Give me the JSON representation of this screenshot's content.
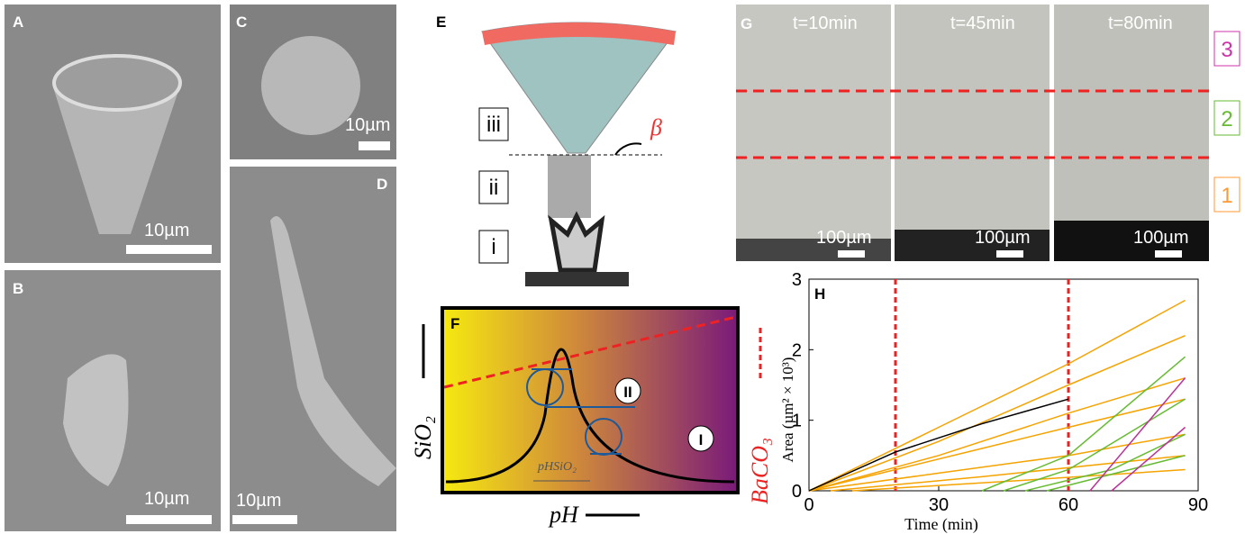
{
  "panels": {
    "A": {
      "label": "A",
      "scale": "10µm"
    },
    "B": {
      "label": "B",
      "scale": "10µm"
    },
    "C": {
      "label": "C",
      "scale": "10µm"
    },
    "D": {
      "label": "D",
      "scale": "10µm"
    },
    "E": {
      "label": "E",
      "zones": [
        "iii",
        "ii",
        "i"
      ],
      "angle": "β"
    },
    "F": {
      "label": "F",
      "y_label": "SiO₂",
      "x_label": "pH",
      "y2_label": "BaCO₃",
      "cycles": [
        "II",
        "I"
      ],
      "width_label": "pHSiO₂"
    },
    "G": {
      "label": "G",
      "times": [
        "t=10min",
        "t=45min",
        "t=80min"
      ],
      "scale": "100µm",
      "zones": [
        "3",
        "2",
        "1"
      ]
    }
  },
  "chart_data": {
    "type": "line",
    "label": "H",
    "x_label": "Time (min)",
    "y_label": "Area (µm² × 10³)",
    "xlim": [
      0,
      90
    ],
    "xticks": [
      0,
      30,
      60,
      90
    ],
    "ylim": [
      0,
      3
    ],
    "yticks": [
      0,
      1,
      2,
      3
    ],
    "markers": [
      20,
      60
    ],
    "series": [
      {
        "color": "#f5a300",
        "x": [
          0,
          30,
          60,
          87
        ],
        "values": [
          0,
          0.9,
          1.8,
          2.7
        ]
      },
      {
        "color": "#f5a300",
        "x": [
          0,
          30,
          60,
          87
        ],
        "values": [
          0,
          0.7,
          1.5,
          2.2
        ]
      },
      {
        "color": "#f5a300",
        "x": [
          0,
          30,
          60,
          87
        ],
        "values": [
          0,
          0.5,
          1.1,
          1.6
        ]
      },
      {
        "color": "#f5a300",
        "x": [
          0,
          20,
          40,
          60,
          87
        ],
        "values": [
          0,
          0.3,
          0.6,
          0.9,
          1.3
        ]
      },
      {
        "color": "#f5a300",
        "x": [
          0,
          30,
          60,
          87
        ],
        "values": [
          0,
          0.25,
          0.5,
          0.8
        ]
      },
      {
        "color": "#f5a300",
        "x": [
          5,
          40,
          87
        ],
        "values": [
          0,
          0.2,
          0.5
        ]
      },
      {
        "color": "#f5a300",
        "x": [
          10,
          50,
          87
        ],
        "values": [
          0,
          0.15,
          0.3
        ]
      },
      {
        "color": "#66bb33",
        "x": [
          40,
          60,
          87
        ],
        "values": [
          0,
          0.5,
          1.9
        ]
      },
      {
        "color": "#66bb33",
        "x": [
          45,
          60,
          87
        ],
        "values": [
          0,
          0.3,
          1.3
        ]
      },
      {
        "color": "#66bb33",
        "x": [
          50,
          70,
          87
        ],
        "values": [
          0,
          0.3,
          0.8
        ]
      },
      {
        "color": "#66bb33",
        "x": [
          55,
          87
        ],
        "values": [
          0,
          0.5
        ]
      },
      {
        "color": "#bb3399",
        "x": [
          65,
          87
        ],
        "values": [
          0,
          1.6
        ]
      },
      {
        "color": "#bb3399",
        "x": [
          70,
          87
        ],
        "values": [
          0,
          0.9
        ]
      },
      {
        "color": "#000000",
        "x": [
          0,
          20,
          40,
          60
        ],
        "values": [
          0,
          0.55,
          0.95,
          1.3
        ]
      }
    ]
  }
}
